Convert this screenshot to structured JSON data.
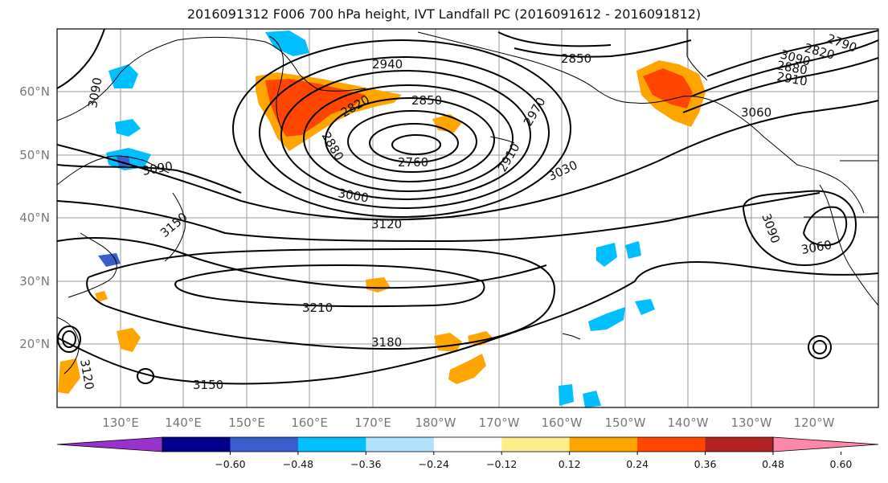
{
  "title": "2016091312 F006 700 hPa height, IVT Landfall PC (2016091612 - 2016091812)",
  "map": {
    "lon_labels": [
      "130°E",
      "140°E",
      "150°E",
      "160°E",
      "170°E",
      "180°W",
      "170°W",
      "160°W",
      "150°W",
      "140°W",
      "130°W",
      "120°W"
    ],
    "lat_labels": [
      "60°N",
      "50°N",
      "40°N",
      "30°N",
      "20°N"
    ],
    "grid": true
  },
  "contours": {
    "field": "700 hPa height",
    "labels": [
      "2940",
      "2850",
      "2820",
      "2880",
      "2760",
      "2910",
      "2970",
      "3000",
      "3030",
      "3060",
      "3090",
      "3090",
      "3120",
      "3150",
      "3180",
      "3210",
      "3150",
      "3120",
      "3090",
      "3060",
      "2850",
      "2880",
      "2910",
      "2790",
      "2820",
      "3090"
    ]
  },
  "colorbar": {
    "colors": [
      "#9932cc",
      "#00008b",
      "#3a5fcd",
      "#00bfff",
      "#b0e2ff",
      "#ffffff",
      "#ffec8b",
      "#ffa500",
      "#ff4500",
      "#b22222",
      "#ff88aa"
    ],
    "ticks": [
      "−0.60",
      "−0.48",
      "−0.36",
      "−0.24",
      "−0.12",
      "0.12",
      "0.24",
      "0.36",
      "0.48",
      "0.60"
    ]
  },
  "colors": {
    "grid": "#999999",
    "contour": "#000000",
    "tick_label": "#777777"
  }
}
